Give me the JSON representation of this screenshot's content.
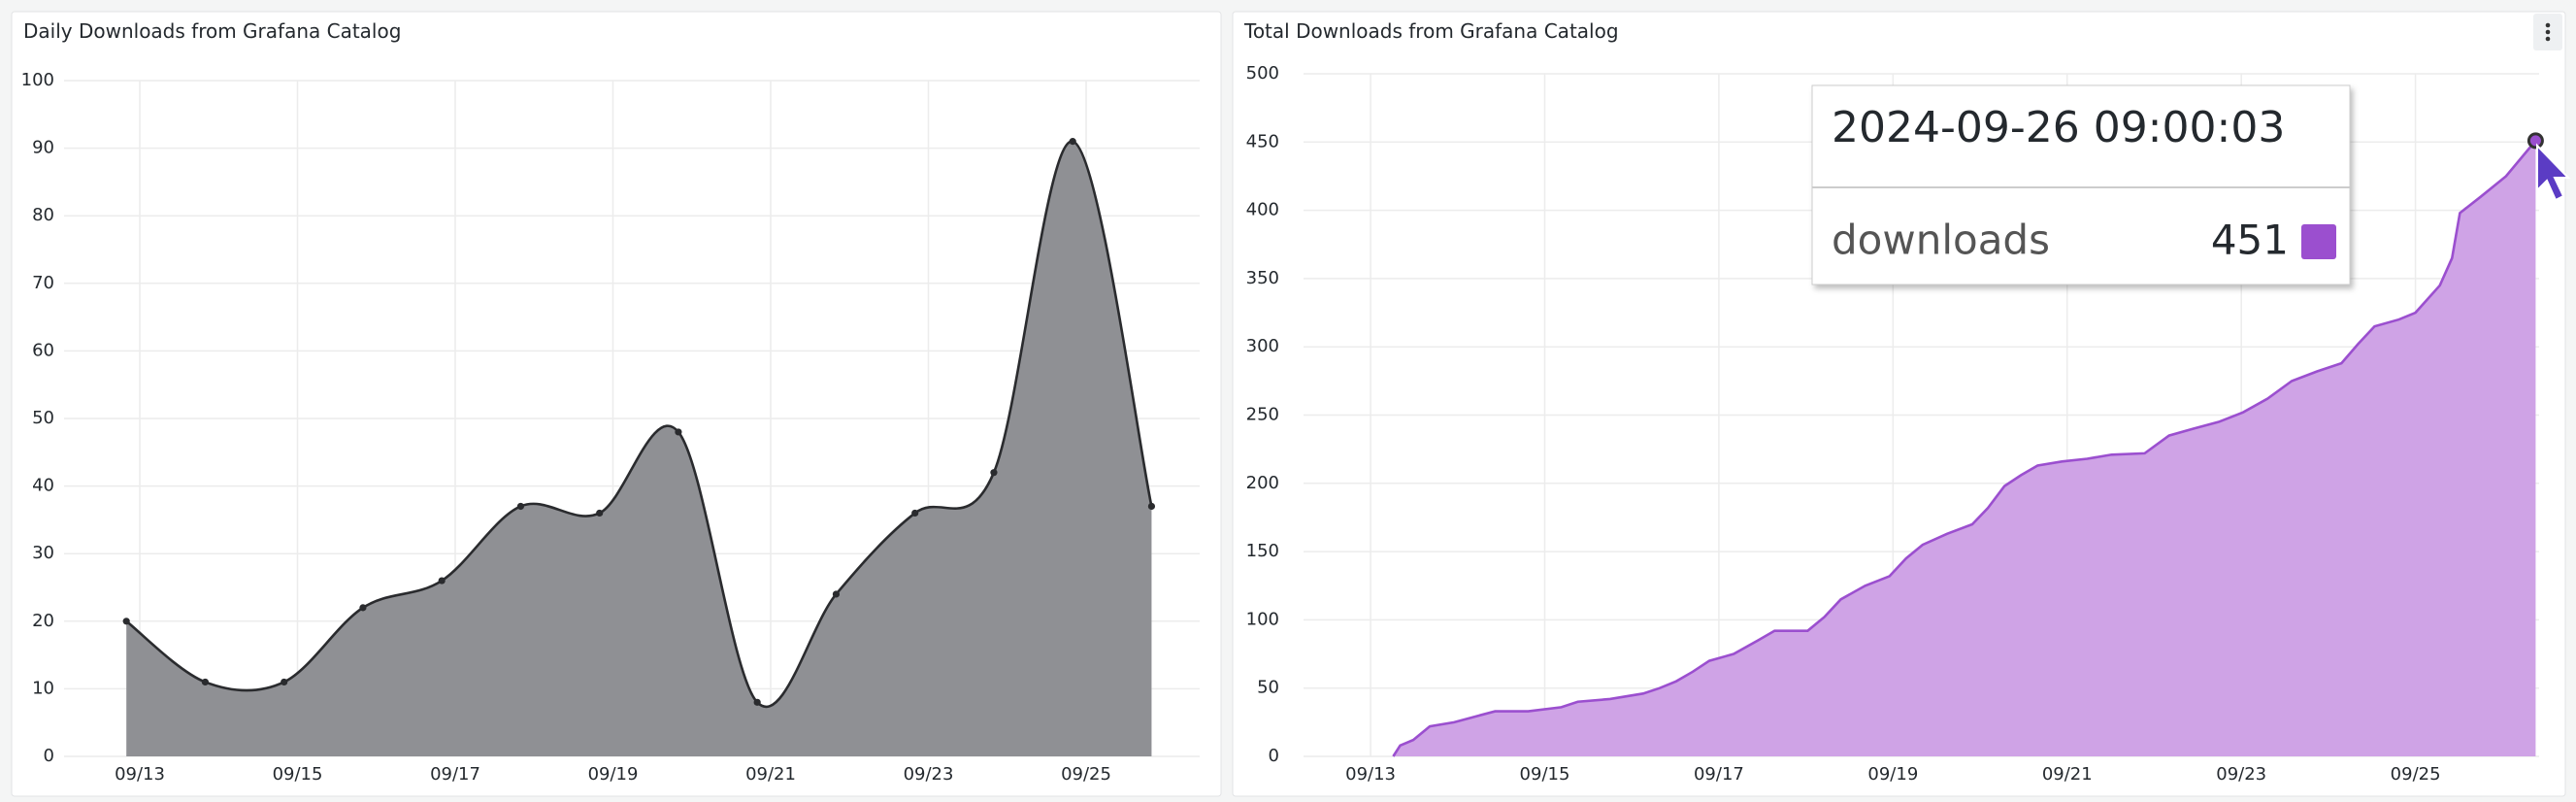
{
  "chart_data": [
    {
      "type": "area",
      "title": "Daily Downloads from Grafana Catalog",
      "smooth": true,
      "points": true,
      "x": [
        12.83,
        13.83,
        14.83,
        15.83,
        16.83,
        17.83,
        18.83,
        19.83,
        20.83,
        21.83,
        22.83,
        23.83,
        24.83,
        25.83
      ],
      "values": [
        20,
        11,
        11,
        22,
        26,
        37,
        36,
        48,
        8,
        24,
        36,
        42,
        91,
        37
      ],
      "color": "#8f9094",
      "line_color": "#2a2b2e",
      "xlim": [
        12.04,
        26.44
      ],
      "xticks": [
        {
          "value": 13,
          "label": "09/13"
        },
        {
          "value": 15,
          "label": "09/15"
        },
        {
          "value": 17,
          "label": "09/17"
        },
        {
          "value": 19,
          "label": "09/19"
        },
        {
          "value": 21,
          "label": "09/21"
        },
        {
          "value": 23,
          "label": "09/23"
        },
        {
          "value": 25,
          "label": "09/25"
        }
      ],
      "ylim": [
        0,
        100
      ],
      "yticks": [
        0,
        10,
        20,
        30,
        40,
        50,
        60,
        70,
        80,
        90,
        100
      ],
      "grid": true
    },
    {
      "type": "area",
      "title": "Total Downloads from Grafana Catalog",
      "smooth": false,
      "points": false,
      "series": [
        {
          "name": "downloads",
          "color": "#cfa3e6",
          "line_color": "#9b4fcf",
          "x": [
            13.26,
            13.34,
            13.49,
            13.68,
            13.96,
            14.25,
            14.43,
            14.81,
            15.19,
            15.38,
            15.75,
            16.13,
            16.32,
            16.51,
            16.7,
            16.89,
            17.17,
            17.45,
            17.64,
            18.02,
            18.21,
            18.4,
            18.68,
            18.96,
            19.15,
            19.34,
            19.62,
            19.91,
            20.09,
            20.28,
            20.47,
            20.66,
            20.94,
            21.23,
            21.51,
            21.89,
            22.17,
            22.45,
            22.74,
            23.02,
            23.3,
            23.58,
            23.87,
            24.15,
            24.34,
            24.53,
            24.81,
            25.0,
            25.28,
            25.42,
            25.51,
            25.75,
            26.04,
            26.38
          ],
          "values": [
            0,
            8,
            12,
            22,
            25,
            30,
            33,
            33,
            36,
            40,
            42,
            46,
            50,
            55,
            62,
            70,
            75,
            85,
            92,
            92,
            102,
            115,
            125,
            132,
            145,
            155,
            163,
            170,
            182,
            198,
            206,
            213,
            216,
            218,
            221,
            222,
            235,
            240,
            245,
            252,
            262,
            275,
            282,
            288,
            302,
            315,
            320,
            325,
            345,
            365,
            398,
            410,
            425,
            451
          ]
        }
      ],
      "tooltip": {
        "time": "2024-09-26 09:00:03"
      },
      "xlim": [
        12.23,
        26.42
      ],
      "xticks": [
        {
          "value": 13,
          "label": "09/13"
        },
        {
          "value": 15,
          "label": "09/15"
        },
        {
          "value": 17,
          "label": "09/17"
        },
        {
          "value": 19,
          "label": "09/19"
        },
        {
          "value": 21,
          "label": "09/21"
        },
        {
          "value": 23,
          "label": "09/23"
        },
        {
          "value": 25,
          "label": "09/25"
        }
      ],
      "ylim": [
        0,
        500
      ],
      "yticks": [
        0,
        50,
        100,
        150,
        200,
        250,
        300,
        350,
        400,
        450,
        500
      ],
      "grid": true
    }
  ]
}
